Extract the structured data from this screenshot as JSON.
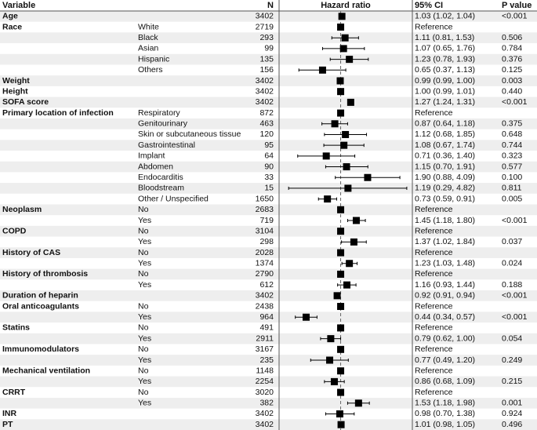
{
  "chart_data": {
    "type": "forest",
    "columns": {
      "variable": "Variable",
      "n": "N",
      "plot": "Hazard ratio",
      "ci": "95% CI",
      "p": "P value"
    },
    "xscale": "log",
    "xlim": [
      0.24,
      5.4
    ],
    "reference_line": 1,
    "color": "#000000",
    "shade": "#eeeeee",
    "rows": [
      {
        "variable": "Age",
        "n": 3402,
        "hr": 1.03,
        "lo": 1.02,
        "hi": 1.04,
        "ci": "1.03 (1.02, 1.04)",
        "p": "<0.001"
      },
      {
        "variable": "Race",
        "subgroup": "White",
        "n": 2719,
        "hr": 1,
        "ci": "Reference"
      },
      {
        "subgroup": "Black",
        "n": 293,
        "hr": 1.11,
        "lo": 0.81,
        "hi": 1.53,
        "ci": "1.11 (0.81, 1.53)",
        "p": "0.506"
      },
      {
        "subgroup": "Asian",
        "n": 99,
        "hr": 1.07,
        "lo": 0.65,
        "hi": 1.76,
        "ci": "1.07 (0.65, 1.76)",
        "p": "0.784"
      },
      {
        "subgroup": "Hispanic",
        "n": 135,
        "hr": 1.23,
        "lo": 0.78,
        "hi": 1.93,
        "ci": "1.23 (0.78, 1.93)",
        "p": "0.376"
      },
      {
        "subgroup": "Others",
        "n": 156,
        "hr": 0.65,
        "lo": 0.37,
        "hi": 1.13,
        "ci": "0.65 (0.37, 1.13)",
        "p": "0.125"
      },
      {
        "variable": "Weight",
        "n": 3402,
        "hr": 0.99,
        "lo": 0.99,
        "hi": 1.0,
        "ci": "0.99 (0.99, 1.00)",
        "p": "0.003"
      },
      {
        "variable": "Height",
        "n": 3402,
        "hr": 1.0,
        "lo": 0.99,
        "hi": 1.01,
        "ci": "1.00 (0.99, 1.01)",
        "p": "0.440"
      },
      {
        "variable": "SOFA score",
        "n": 3402,
        "hr": 1.27,
        "lo": 1.24,
        "hi": 1.31,
        "ci": "1.27 (1.24, 1.31)",
        "p": "<0.001"
      },
      {
        "variable": "Primary location of infection",
        "subgroup": "Respiratory",
        "n": 872,
        "hr": 1,
        "ci": "Reference"
      },
      {
        "subgroup": "Genitourinary",
        "n": 463,
        "hr": 0.87,
        "lo": 0.64,
        "hi": 1.18,
        "ci": "0.87 (0.64, 1.18)",
        "p": "0.375"
      },
      {
        "subgroup": "Skin or subcutaneous tissue",
        "n": 120,
        "hr": 1.12,
        "lo": 0.68,
        "hi": 1.85,
        "ci": "1.12 (0.68, 1.85)",
        "p": "0.648"
      },
      {
        "subgroup": "Gastrointestinal",
        "n": 95,
        "hr": 1.08,
        "lo": 0.67,
        "hi": 1.74,
        "ci": "1.08 (0.67, 1.74)",
        "p": "0.744"
      },
      {
        "subgroup": "Implant",
        "n": 64,
        "hr": 0.71,
        "lo": 0.36,
        "hi": 1.4,
        "ci": "0.71 (0.36, 1.40)",
        "p": "0.323"
      },
      {
        "subgroup": "Abdomen",
        "n": 90,
        "hr": 1.15,
        "lo": 0.7,
        "hi": 1.91,
        "ci": "1.15 (0.70, 1.91)",
        "p": "0.577"
      },
      {
        "subgroup": "Endocarditis",
        "n": 33,
        "hr": 1.9,
        "lo": 0.88,
        "hi": 4.09,
        "ci": "1.90 (0.88, 4.09)",
        "p": "0.100"
      },
      {
        "subgroup": "Bloodstream",
        "n": 15,
        "hr": 1.19,
        "lo": 0.29,
        "hi": 4.82,
        "ci": "1.19 (0.29, 4.82)",
        "p": "0.811"
      },
      {
        "subgroup": "Other / Unspecified",
        "n": 1650,
        "hr": 0.73,
        "lo": 0.59,
        "hi": 0.91,
        "ci": "0.73 (0.59, 0.91)",
        "p": "0.005"
      },
      {
        "variable": "Neoplasm",
        "subgroup": "No",
        "n": 2683,
        "hr": 1,
        "ci": "Reference"
      },
      {
        "subgroup": "Yes",
        "n": 719,
        "hr": 1.45,
        "lo": 1.18,
        "hi": 1.8,
        "ci": "1.45 (1.18, 1.80)",
        "p": "<0.001"
      },
      {
        "variable": "COPD",
        "subgroup": "No",
        "n": 3104,
        "hr": 1,
        "ci": "Reference"
      },
      {
        "subgroup": "Yes",
        "n": 298,
        "hr": 1.37,
        "lo": 1.02,
        "hi": 1.84,
        "ci": "1.37 (1.02, 1.84)",
        "p": "0.037"
      },
      {
        "variable": "History of CAS",
        "subgroup": "No",
        "n": 2028,
        "hr": 1,
        "ci": "Reference"
      },
      {
        "subgroup": "Yes",
        "n": 1374,
        "hr": 1.23,
        "lo": 1.03,
        "hi": 1.48,
        "ci": "1.23 (1.03, 1.48)",
        "p": "0.024"
      },
      {
        "variable": "History of thrombosis",
        "subgroup": "No",
        "n": 2790,
        "hr": 1,
        "ci": "Reference"
      },
      {
        "subgroup": "Yes",
        "n": 612,
        "hr": 1.16,
        "lo": 0.93,
        "hi": 1.44,
        "ci": "1.16 (0.93, 1.44)",
        "p": "0.188"
      },
      {
        "variable": "Duration of heparin",
        "n": 3402,
        "hr": 0.92,
        "lo": 0.91,
        "hi": 0.94,
        "ci": "0.92 (0.91, 0.94)",
        "p": "<0.001"
      },
      {
        "variable": "Oral anticoagulants",
        "subgroup": "No",
        "n": 2438,
        "hr": 1,
        "ci": "Reference"
      },
      {
        "subgroup": "Yes",
        "n": 964,
        "hr": 0.44,
        "lo": 0.34,
        "hi": 0.57,
        "ci": "0.44 (0.34, 0.57)",
        "p": "<0.001"
      },
      {
        "variable": "Statins",
        "subgroup": "No",
        "n": 491,
        "hr": 1,
        "ci": "Reference"
      },
      {
        "subgroup": "Yes",
        "n": 2911,
        "hr": 0.79,
        "lo": 0.62,
        "hi": 1.0,
        "ci": "0.79 (0.62, 1.00)",
        "p": "0.054"
      },
      {
        "variable": "Immunomodulators",
        "subgroup": "No",
        "n": 3167,
        "hr": 1,
        "ci": "Reference"
      },
      {
        "subgroup": "Yes",
        "n": 235,
        "hr": 0.77,
        "lo": 0.49,
        "hi": 1.2,
        "ci": "0.77 (0.49, 1.20)",
        "p": "0.249"
      },
      {
        "variable": "Mechanical ventilation",
        "subgroup": "No",
        "n": 1148,
        "hr": 1,
        "ci": "Reference"
      },
      {
        "subgroup": "Yes",
        "n": 2254,
        "hr": 0.86,
        "lo": 0.68,
        "hi": 1.09,
        "ci": "0.86 (0.68, 1.09)",
        "p": "0.215"
      },
      {
        "variable": "CRRT",
        "subgroup": "No",
        "n": 3020,
        "hr": 1,
        "ci": "Reference"
      },
      {
        "subgroup": "Yes",
        "n": 382,
        "hr": 1.53,
        "lo": 1.18,
        "hi": 1.98,
        "ci": "1.53 (1.18, 1.98)",
        "p": "0.001"
      },
      {
        "variable": "INR",
        "n": 3402,
        "hr": 0.98,
        "lo": 0.7,
        "hi": 1.38,
        "ci": "0.98 (0.70, 1.38)",
        "p": "0.924"
      },
      {
        "variable": "PT",
        "n": 3402,
        "hr": 1.01,
        "lo": 0.98,
        "hi": 1.05,
        "ci": "1.01 (0.98, 1.05)",
        "p": "0.496"
      }
    ]
  }
}
